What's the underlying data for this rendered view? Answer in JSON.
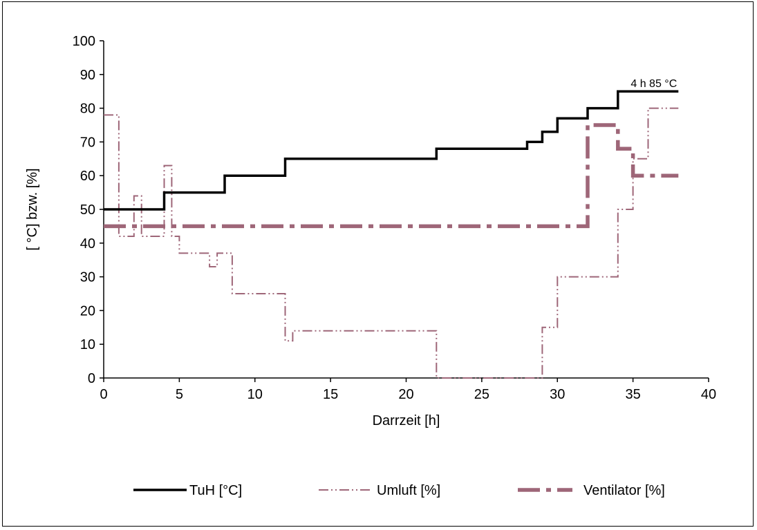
{
  "chart_data": {
    "type": "line",
    "title": "",
    "xlabel": "Darrzeit [h]",
    "ylabel": "[ °C] bzw. [%]",
    "xlim": [
      0,
      40
    ],
    "ylim": [
      0,
      100
    ],
    "xticks": [
      0,
      5,
      10,
      15,
      20,
      25,
      30,
      35,
      40
    ],
    "yticks": [
      0,
      10,
      20,
      30,
      40,
      50,
      60,
      70,
      80,
      90,
      100
    ],
    "grid": false,
    "legend_position": "bottom",
    "step": true,
    "annotation": "4 h 85 °C",
    "series": [
      {
        "name": "TuH [°C]",
        "color": "#000000",
        "style": "solid",
        "points": [
          [
            0,
            50
          ],
          [
            4,
            50
          ],
          [
            4,
            55
          ],
          [
            8,
            55
          ],
          [
            8,
            60
          ],
          [
            12,
            60
          ],
          [
            12,
            65
          ],
          [
            22,
            65
          ],
          [
            22,
            68
          ],
          [
            28,
            68
          ],
          [
            28,
            70
          ],
          [
            29,
            70
          ],
          [
            29,
            73
          ],
          [
            30,
            73
          ],
          [
            30,
            77
          ],
          [
            32,
            77
          ],
          [
            32,
            80
          ],
          [
            34,
            80
          ],
          [
            34,
            85
          ],
          [
            38,
            85
          ]
        ]
      },
      {
        "name": "Umluft [%]",
        "color": "#9e6678",
        "style": "dash-dot-dot",
        "points": [
          [
            0,
            78
          ],
          [
            1,
            78
          ],
          [
            1,
            42
          ],
          [
            2,
            42
          ],
          [
            2,
            54
          ],
          [
            2.5,
            54
          ],
          [
            2.5,
            42
          ],
          [
            4,
            42
          ],
          [
            4,
            63
          ],
          [
            4.5,
            63
          ],
          [
            4.5,
            42
          ],
          [
            5,
            42
          ],
          [
            5,
            37
          ],
          [
            7,
            37
          ],
          [
            7,
            33
          ],
          [
            7.5,
            33
          ],
          [
            7.5,
            37
          ],
          [
            8.5,
            37
          ],
          [
            8.5,
            25
          ],
          [
            12,
            25
          ],
          [
            12,
            11
          ],
          [
            12.5,
            11
          ],
          [
            12.5,
            14
          ],
          [
            22,
            14
          ],
          [
            22,
            0
          ],
          [
            29,
            0
          ],
          [
            29,
            15
          ],
          [
            30,
            15
          ],
          [
            30,
            30
          ],
          [
            34,
            30
          ],
          [
            34,
            50
          ],
          [
            35,
            50
          ],
          [
            35,
            65
          ],
          [
            36,
            65
          ],
          [
            36,
            80
          ],
          [
            38,
            80
          ]
        ]
      },
      {
        "name": "Ventilator [%]",
        "color": "#9e6678",
        "style": "long-dash-dot",
        "points": [
          [
            0,
            45
          ],
          [
            32,
            45
          ],
          [
            32,
            75
          ],
          [
            34,
            75
          ],
          [
            34,
            68
          ],
          [
            35,
            68
          ],
          [
            35,
            60
          ],
          [
            38,
            60
          ]
        ]
      }
    ]
  }
}
